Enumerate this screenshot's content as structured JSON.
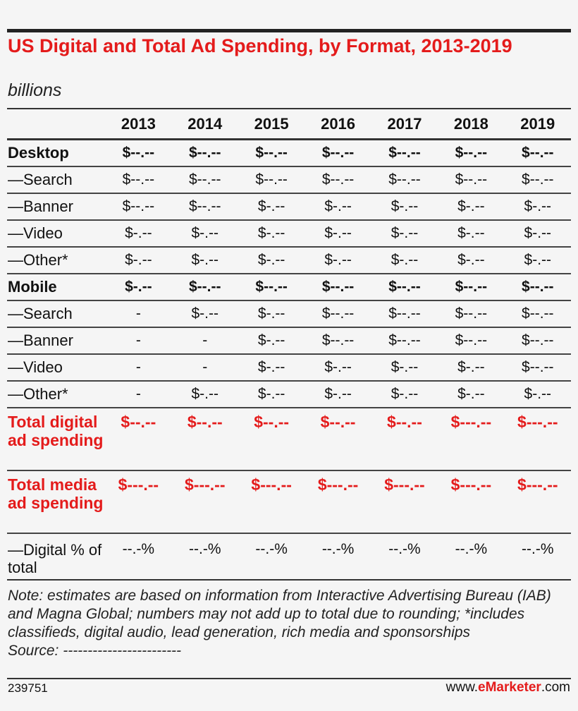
{
  "chart_data": {
    "type": "table",
    "title": "US Digital and Total Ad Spending, by Format, 2013-2019",
    "subtitle": "billions",
    "columns": [
      "2013",
      "2014",
      "2015",
      "2016",
      "2017",
      "2018",
      "2019"
    ],
    "rows": [
      {
        "label": "Desktop",
        "style": "bold",
        "values": [
          "$--.--",
          "$--.--",
          "$--.--",
          "$--.--",
          "$--.--",
          "$--.--",
          "$--.--"
        ]
      },
      {
        "label": "—Search",
        "style": "std",
        "values": [
          "$--.--",
          "$--.--",
          "$--.--",
          "$--.--",
          "$--.--",
          "$--.--",
          "$--.--"
        ]
      },
      {
        "label": "—Banner",
        "style": "std",
        "values": [
          "$--.--",
          "$--.--",
          "$-.--",
          "$-.--",
          "$-.--",
          "$-.--",
          "$-.--"
        ]
      },
      {
        "label": "—Video",
        "style": "std",
        "values": [
          "$-.--",
          "$-.--",
          "$-.--",
          "$-.--",
          "$-.--",
          "$-.--",
          "$-.--"
        ]
      },
      {
        "label": "—Other*",
        "style": "std",
        "values": [
          "$-.--",
          "$-.--",
          "$-.--",
          "$-.--",
          "$-.--",
          "$-.--",
          "$-.--"
        ]
      },
      {
        "label": "Mobile",
        "style": "bold",
        "values": [
          "$-.--",
          "$--.--",
          "$--.--",
          "$--.--",
          "$--.--",
          "$--.--",
          "$--.--"
        ]
      },
      {
        "label": "—Search",
        "style": "std",
        "values": [
          "-",
          "$-.--",
          "$-.--",
          "$--.--",
          "$--.--",
          "$--.--",
          "$--.--"
        ]
      },
      {
        "label": "—Banner",
        "style": "std",
        "values": [
          "-",
          "-",
          "$-.--",
          "$--.--",
          "$--.--",
          "$--.--",
          "$--.--"
        ]
      },
      {
        "label": "—Video",
        "style": "std",
        "values": [
          "-",
          "-",
          "$-.--",
          "$-.--",
          "$-.--",
          "$-.--",
          "$--.--"
        ]
      },
      {
        "label": "—Other*",
        "style": "std",
        "values": [
          "-",
          "$-.--",
          "$-.--",
          "$-.--",
          "$-.--",
          "$-.--",
          "$-.--"
        ]
      },
      {
        "label": "Total digital ad spending",
        "style": "tot",
        "values": [
          "$--.--",
          "$--.--",
          "$--.--",
          "$--.--",
          "$--.--",
          "$---.--",
          "$---.--"
        ]
      },
      {
        "label": "Total media ad spending",
        "style": "tot",
        "values": [
          "$---.--",
          "$---.--",
          "$---.--",
          "$---.--",
          "$---.--",
          "$---.--",
          "$---.--"
        ]
      },
      {
        "label": "—Digital % of total",
        "style": "pct",
        "values": [
          "--.-%",
          "--.-%",
          "--.-%",
          "--.-%",
          "--.-%",
          "--.-%",
          "--.-%"
        ]
      }
    ],
    "highlight_color": "#e41b1b"
  },
  "note": "Note: estimates are based on information from Interactive Advertising Bureau (IAB) and Magna Global; numbers may not add up to total due to rounding; *includes classifieds, digital audio, lead generation, rich media and sponsorships",
  "source": "Source: ------------------------",
  "footer": {
    "id": "239751",
    "brand_prefix": "www.",
    "brand_bold": "eMarketer",
    "brand_suffix": ".com"
  }
}
